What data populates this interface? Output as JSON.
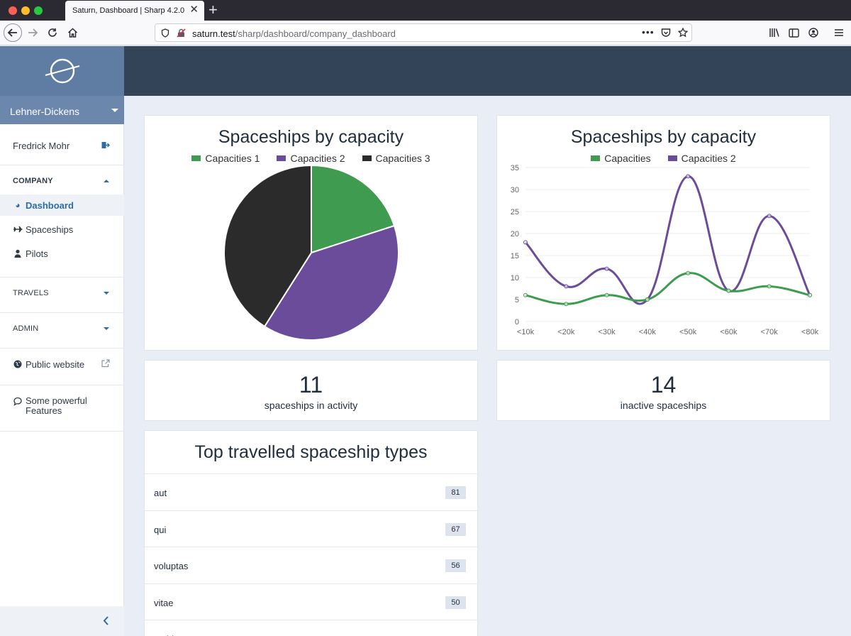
{
  "browser": {
    "tab_title": "Saturn, Dashboard | Sharp 4.2.0",
    "url_host": "saturn.test",
    "url_path": "/sharp/dashboard/company_dashboard",
    "tab_close": "✕",
    "new_tab": "+"
  },
  "sidebar": {
    "company": "Lehner-Dickens",
    "user_name": "Fredrick Mohr",
    "sections": {
      "company": "COMPANY",
      "travels": "TRAVELS",
      "admin": "ADMIN"
    },
    "items": [
      {
        "label": "Dashboard",
        "icon": "dashboard-icon"
      },
      {
        "label": "Spaceships",
        "icon": "plane-icon"
      },
      {
        "label": "Pilots",
        "icon": "user-icon"
      }
    ],
    "public_website": "Public website",
    "features_line1": "Some powerful",
    "features_line2": "Features"
  },
  "pie_chart": {
    "title": "Spaceships by capacity",
    "legend": [
      "Capacities 1",
      "Capacities 2",
      "Capacities 3"
    ]
  },
  "line_chart": {
    "title": "Spaceships by capacity",
    "legend": [
      "Capacities",
      "Capacities 2"
    ],
    "y_ticks": [
      "35",
      "30",
      "25",
      "20",
      "15",
      "10",
      "5",
      "0"
    ],
    "x_ticks": [
      "<10k",
      "<20k",
      "<30k",
      "<40k",
      "<50k",
      "<60k",
      "<70k",
      "<80k"
    ]
  },
  "stats": {
    "active_value": "11",
    "active_label": "spaceships in activity",
    "inactive_value": "14",
    "inactive_label": "inactive spaceships"
  },
  "top_types": {
    "title": "Top travelled spaceship types",
    "rows": [
      {
        "label": "aut",
        "count": "81"
      },
      {
        "label": "qui",
        "count": "67"
      },
      {
        "label": "voluptas",
        "count": "56"
      },
      {
        "label": "vitae",
        "count": "50"
      },
      {
        "label": "architecto",
        "count": ""
      }
    ]
  },
  "chart_data": [
    {
      "type": "pie",
      "title": "Spaceships by capacity",
      "labels": [
        "Capacities 1",
        "Capacities 2",
        "Capacities 3"
      ],
      "values": [
        20,
        39,
        41
      ],
      "colors": [
        "#3e9b4f",
        "#6b4c9a",
        "#2b2b2b"
      ]
    },
    {
      "type": "line",
      "title": "Spaceships by capacity",
      "categories": [
        "<10k",
        "<20k",
        "<30k",
        "<40k",
        "<50k",
        "<60k",
        "<70k",
        "<80k"
      ],
      "ylim": [
        0,
        35
      ],
      "series": [
        {
          "name": "Capacities",
          "values": [
            6,
            4,
            6,
            5,
            11,
            7,
            8,
            6
          ],
          "color": "#3e9b4f"
        },
        {
          "name": "Capacities 2",
          "values": [
            18,
            8,
            12,
            5,
            33,
            7,
            24,
            6
          ],
          "color": "#6b4c9a"
        }
      ]
    }
  ],
  "colors": {
    "sidebar_brand": "#5f7da2",
    "topbar": "#334458",
    "accent": "#2e6da4",
    "background": "#e9eef6"
  }
}
